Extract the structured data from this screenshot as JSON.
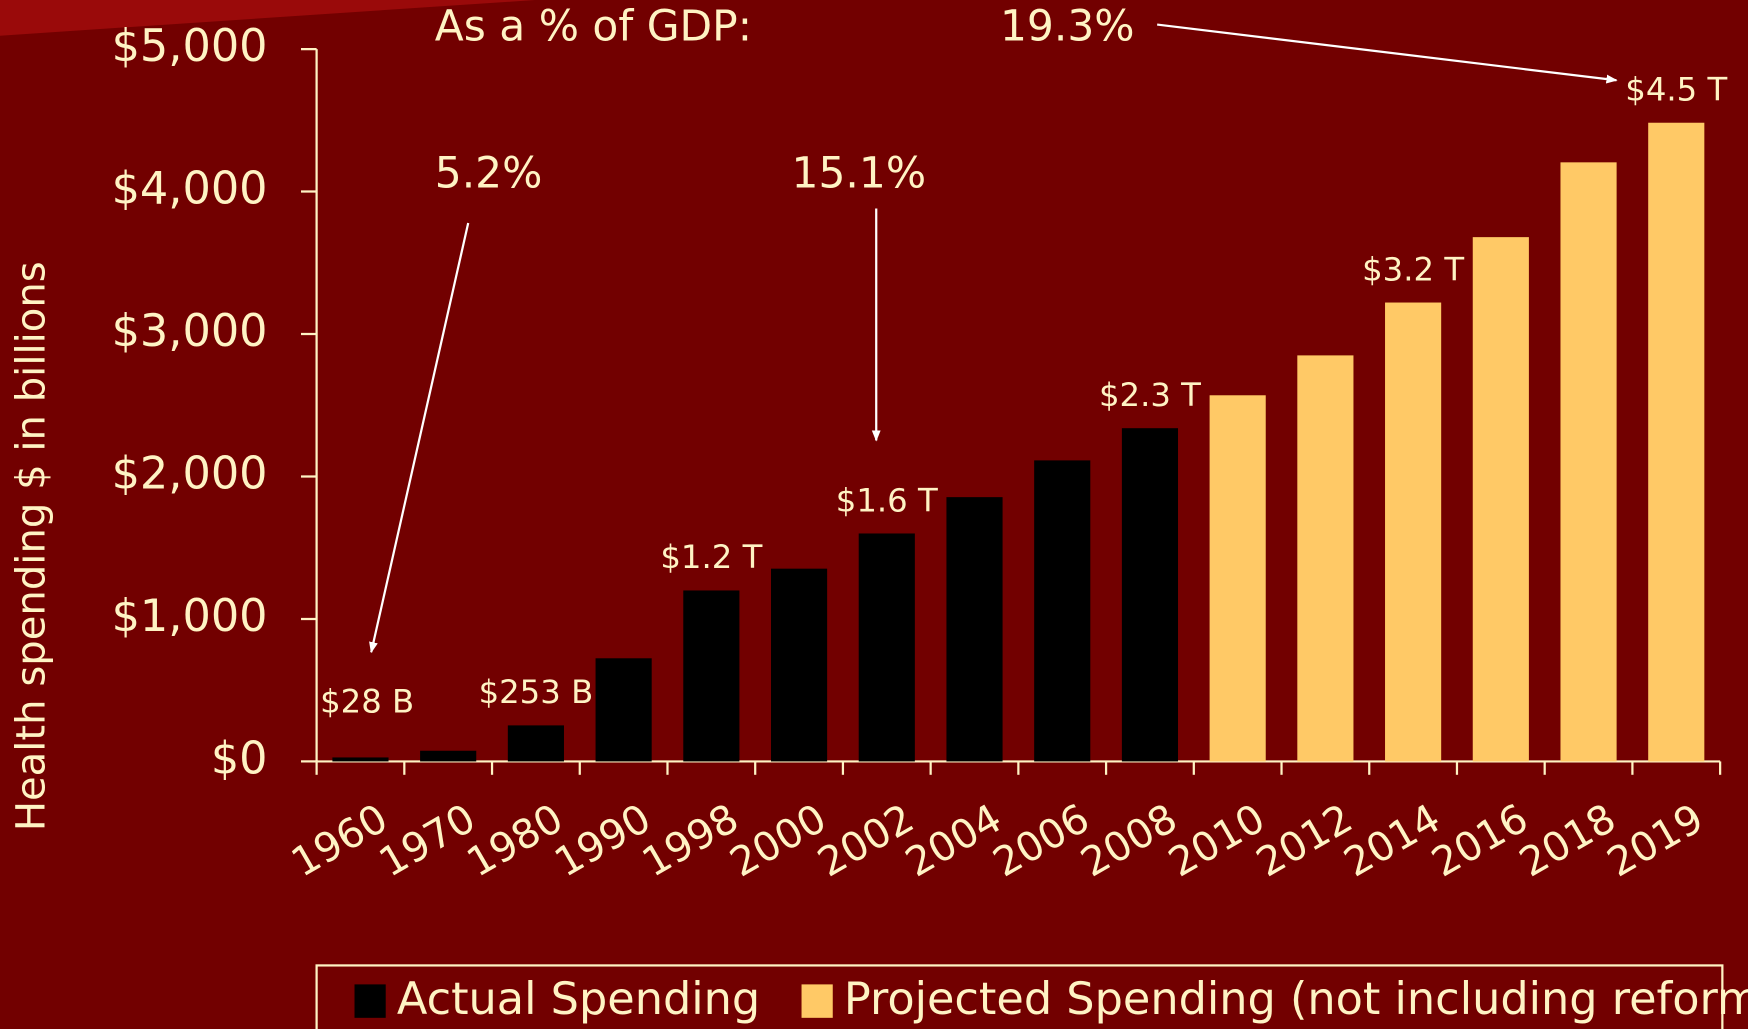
{
  "chart_data": {
    "type": "bar",
    "y_label": "Health spending $ in billions",
    "annotations": [
      "As a % of GDP:",
      "5.2%",
      "15.1%",
      "19.3%"
    ],
    "categories": [
      "1960",
      "1970",
      "1980",
      "1990",
      "1998",
      "2000",
      "2002",
      "2004",
      "2006",
      "2008",
      "2010",
      "2012",
      "2014",
      "2016",
      "2018",
      "2019"
    ],
    "series": [
      {
        "name": "Actual Spending",
        "color": "#000000",
        "values": [
          28,
          75,
          253,
          724,
          1200,
          1353,
          1600,
          1855,
          2113,
          2339,
          null,
          null,
          null,
          null,
          null,
          null
        ],
        "value_labels": [
          "$28 B",
          null,
          "$253 B",
          null,
          "$1.2 T",
          null,
          "$1.6 T",
          null,
          null,
          "$2.3 T",
          null,
          null,
          null,
          null,
          null,
          null
        ]
      },
      {
        "name": "Projected Spending (not including reform)",
        "color": "#ffc966",
        "values": [
          null,
          null,
          null,
          null,
          null,
          null,
          null,
          null,
          null,
          null,
          2570,
          2850,
          3221,
          3680,
          4205,
          4483
        ],
        "value_labels": [
          null,
          null,
          null,
          null,
          null,
          null,
          null,
          null,
          null,
          null,
          null,
          null,
          "$3.2 T",
          null,
          null,
          "$4.5 T"
        ]
      }
    ],
    "ylim": [
      0,
      5000
    ],
    "yticks": [
      {
        "value": 0,
        "label": "$0"
      },
      {
        "value": 1000,
        "label": "$1,000"
      },
      {
        "value": 2000,
        "label": "$2,000"
      },
      {
        "value": 3000,
        "label": "$3,000"
      },
      {
        "value": 4000,
        "label": "$4,000"
      },
      {
        "value": 5000,
        "label": "$5,000"
      }
    ],
    "legend": "bottom"
  }
}
